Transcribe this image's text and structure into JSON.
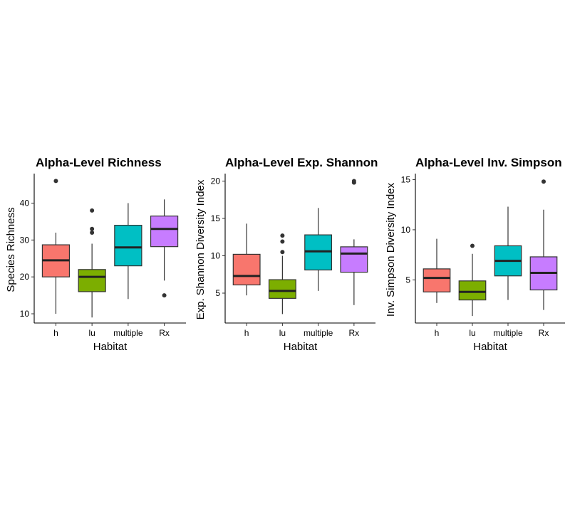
{
  "chart_data": [
    {
      "type": "box",
      "title": "Alpha-Level Richness",
      "xlabel": "Habitat",
      "ylabel": "Species Richness",
      "categories": [
        "h",
        "lu",
        "multiple",
        "Rx"
      ],
      "ylim": [
        7.5,
        48
      ],
      "yticks": [
        10,
        20,
        30,
        40
      ],
      "boxes": [
        {
          "min": 10,
          "q1": 20,
          "median": 24.5,
          "q3": 28.7,
          "max": 32,
          "outliers": [
            46
          ]
        },
        {
          "min": 9,
          "q1": 16,
          "median": 20,
          "q3": 22,
          "max": 29,
          "outliers": [
            32,
            33,
            38
          ]
        },
        {
          "min": 14,
          "q1": 23,
          "median": 28,
          "q3": 34,
          "max": 40,
          "outliers": []
        },
        {
          "min": 19,
          "q1": 28.2,
          "median": 33,
          "q3": 36.5,
          "max": 41,
          "outliers": [
            15
          ]
        }
      ]
    },
    {
      "type": "box",
      "title": "Alpha-Level Exp. Shannon",
      "xlabel": "Habitat",
      "ylabel": "Exp. Shannon Diversity Index",
      "categories": [
        "h",
        "lu",
        "multiple",
        "Rx"
      ],
      "ylim": [
        1,
        21
      ],
      "yticks": [
        5,
        10,
        15,
        20
      ],
      "boxes": [
        {
          "min": 4.7,
          "q1": 6.1,
          "median": 7.3,
          "q3": 10.2,
          "max": 14.3,
          "outliers": []
        },
        {
          "min": 2.2,
          "q1": 4.3,
          "median": 5.3,
          "q3": 6.8,
          "max": 10,
          "outliers": [
            10.5,
            11.9,
            12.7
          ]
        },
        {
          "min": 5.3,
          "q1": 8.1,
          "median": 10.6,
          "q3": 12.8,
          "max": 16.4,
          "outliers": []
        },
        {
          "min": 3.4,
          "q1": 7.8,
          "median": 10.3,
          "q3": 11.2,
          "max": 12.2,
          "outliers": [
            19.8,
            20.0
          ]
        }
      ]
    },
    {
      "type": "box",
      "title": "Alpha-Level Inv. Simpson",
      "xlabel": "Habitat",
      "ylabel": "Inv. Simpson Diversity Index",
      "categories": [
        "h",
        "lu",
        "multiple",
        "Rx"
      ],
      "ylim": [
        0.7,
        15.6
      ],
      "yticks": [
        5,
        10,
        15
      ],
      "boxes": [
        {
          "min": 2.7,
          "q1": 3.8,
          "median": 5.2,
          "q3": 6.1,
          "max": 9.1,
          "outliers": []
        },
        {
          "min": 1.4,
          "q1": 3.0,
          "median": 3.8,
          "q3": 4.9,
          "max": 7.6,
          "outliers": [
            8.4
          ]
        },
        {
          "min": 3.0,
          "q1": 5.4,
          "median": 6.9,
          "q3": 8.4,
          "max": 12.3,
          "outliers": []
        },
        {
          "min": 2.0,
          "q1": 4.0,
          "median": 5.7,
          "q3": 7.3,
          "max": 12.0,
          "outliers": [
            14.8
          ]
        }
      ]
    }
  ],
  "colors": {
    "fills": [
      "#F8766D",
      "#7CAE00",
      "#00BFC4",
      "#C77CFF"
    ],
    "outline": "#333333",
    "outlier": "#333333"
  }
}
